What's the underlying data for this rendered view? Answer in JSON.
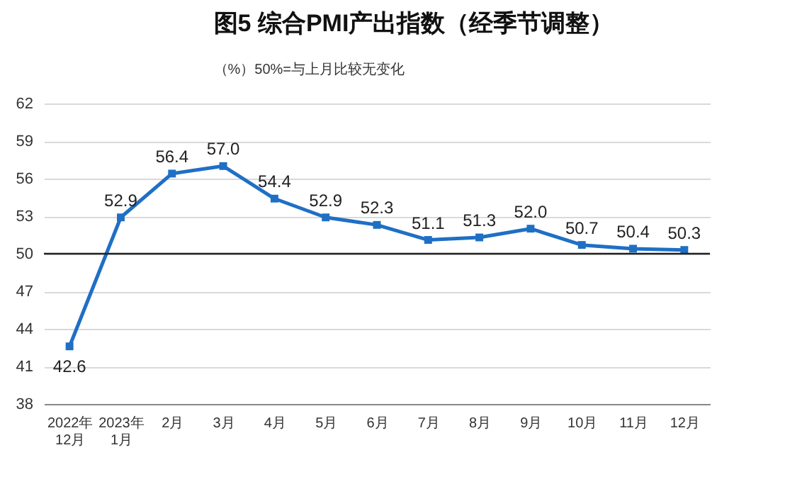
{
  "chart_data": {
    "type": "line",
    "title": "图5 综合PMI产出指数（经季节调整）",
    "subtitle": "（%）50%=与上月比较无变化",
    "categories": [
      "2022年\n12月",
      "2023年\n1月",
      "2月",
      "3月",
      "4月",
      "5月",
      "6月",
      "7月",
      "8月",
      "9月",
      "10月",
      "11月",
      "12月"
    ],
    "series": [
      {
        "color": "#1f6fc5",
        "values": [
          42.6,
          52.9,
          56.4,
          57.0,
          54.4,
          52.9,
          52.3,
          51.1,
          51.3,
          52.0,
          50.7,
          50.4,
          50.3
        ],
        "value_labels": [
          "42.6",
          "52.9",
          "56.4",
          "57.0",
          "54.4",
          "52.9",
          "52.3",
          "51.1",
          "51.3",
          "52.0",
          "50.7",
          "50.4",
          "50.3"
        ]
      }
    ],
    "ylim": [
      38,
      62
    ],
    "yticks": [
      38,
      41,
      44,
      47,
      50,
      53,
      56,
      59,
      62
    ],
    "grid": "y",
    "marker": "square",
    "line_style": "solid",
    "ref_lines": [
      {
        "axis": "y",
        "value": 50,
        "color": "#222222"
      }
    ]
  }
}
